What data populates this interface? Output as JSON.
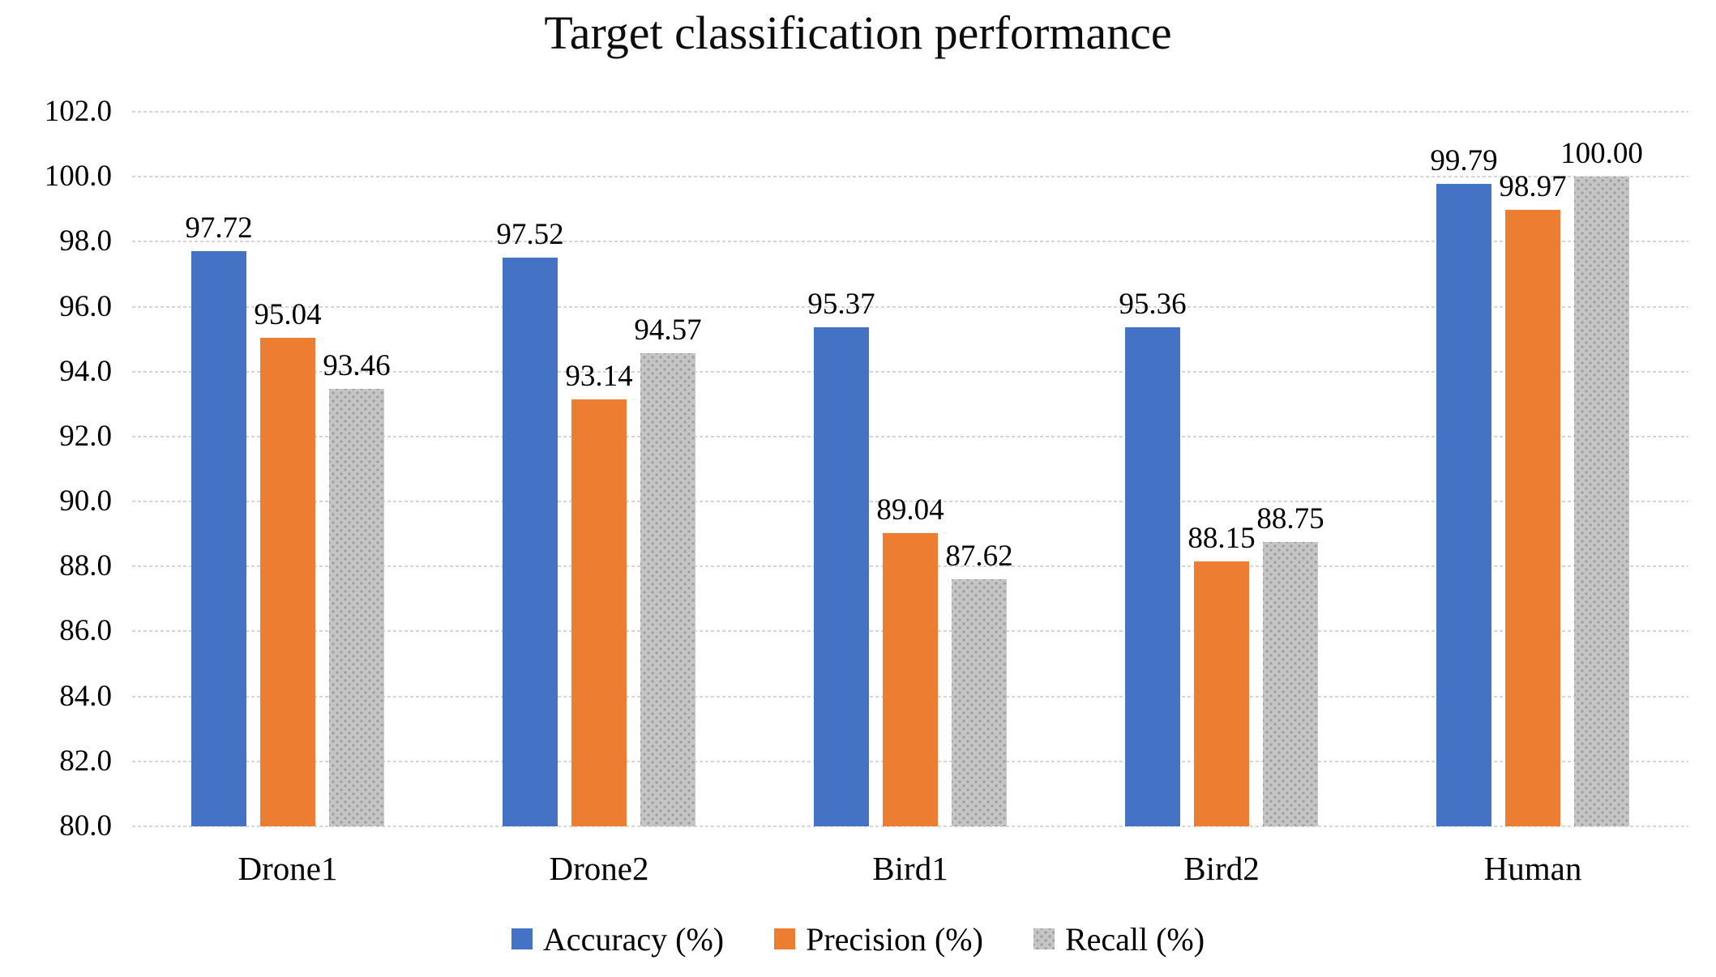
{
  "title": "Target classification performance",
  "chart_data": {
    "type": "bar",
    "title": "Target classification performance",
    "categories": [
      "Drone1",
      "Drone2",
      "Bird1",
      "Bird2",
      "Human"
    ],
    "series": [
      {
        "name": "Accuracy (%)",
        "color": "#4472C4",
        "pattern": "solid",
        "values": [
          97.72,
          97.52,
          95.37,
          95.36,
          99.79
        ],
        "labels": [
          "97.72",
          "97.52",
          "95.37",
          "95.36",
          "99.79"
        ]
      },
      {
        "name": "Precision (%)",
        "color": "#ED7D31",
        "pattern": "solid",
        "values": [
          95.04,
          93.14,
          89.04,
          88.15,
          98.97
        ],
        "labels": [
          "95.04",
          "93.14",
          "89.04",
          "88.15",
          "98.97"
        ]
      },
      {
        "name": "Recall (%)",
        "color": "#C5C5C5",
        "pattern": "dots",
        "pattern_dot_color": "#9E9E9E",
        "values": [
          93.46,
          94.57,
          87.62,
          88.75,
          100.0
        ],
        "labels": [
          "93.46",
          "94.57",
          "87.62",
          "88.75",
          "100.00"
        ]
      }
    ],
    "ylim": [
      80,
      102
    ],
    "ytick_step": 2,
    "ytick_labels": [
      "80.0",
      "82.0",
      "84.0",
      "86.0",
      "88.0",
      "90.0",
      "92.0",
      "94.0",
      "96.0",
      "98.0",
      "100.0",
      "102.0"
    ],
    "grid": "horizontal-dotted",
    "gridline_color": "#D6D6D6",
    "legend_position": "bottom"
  }
}
